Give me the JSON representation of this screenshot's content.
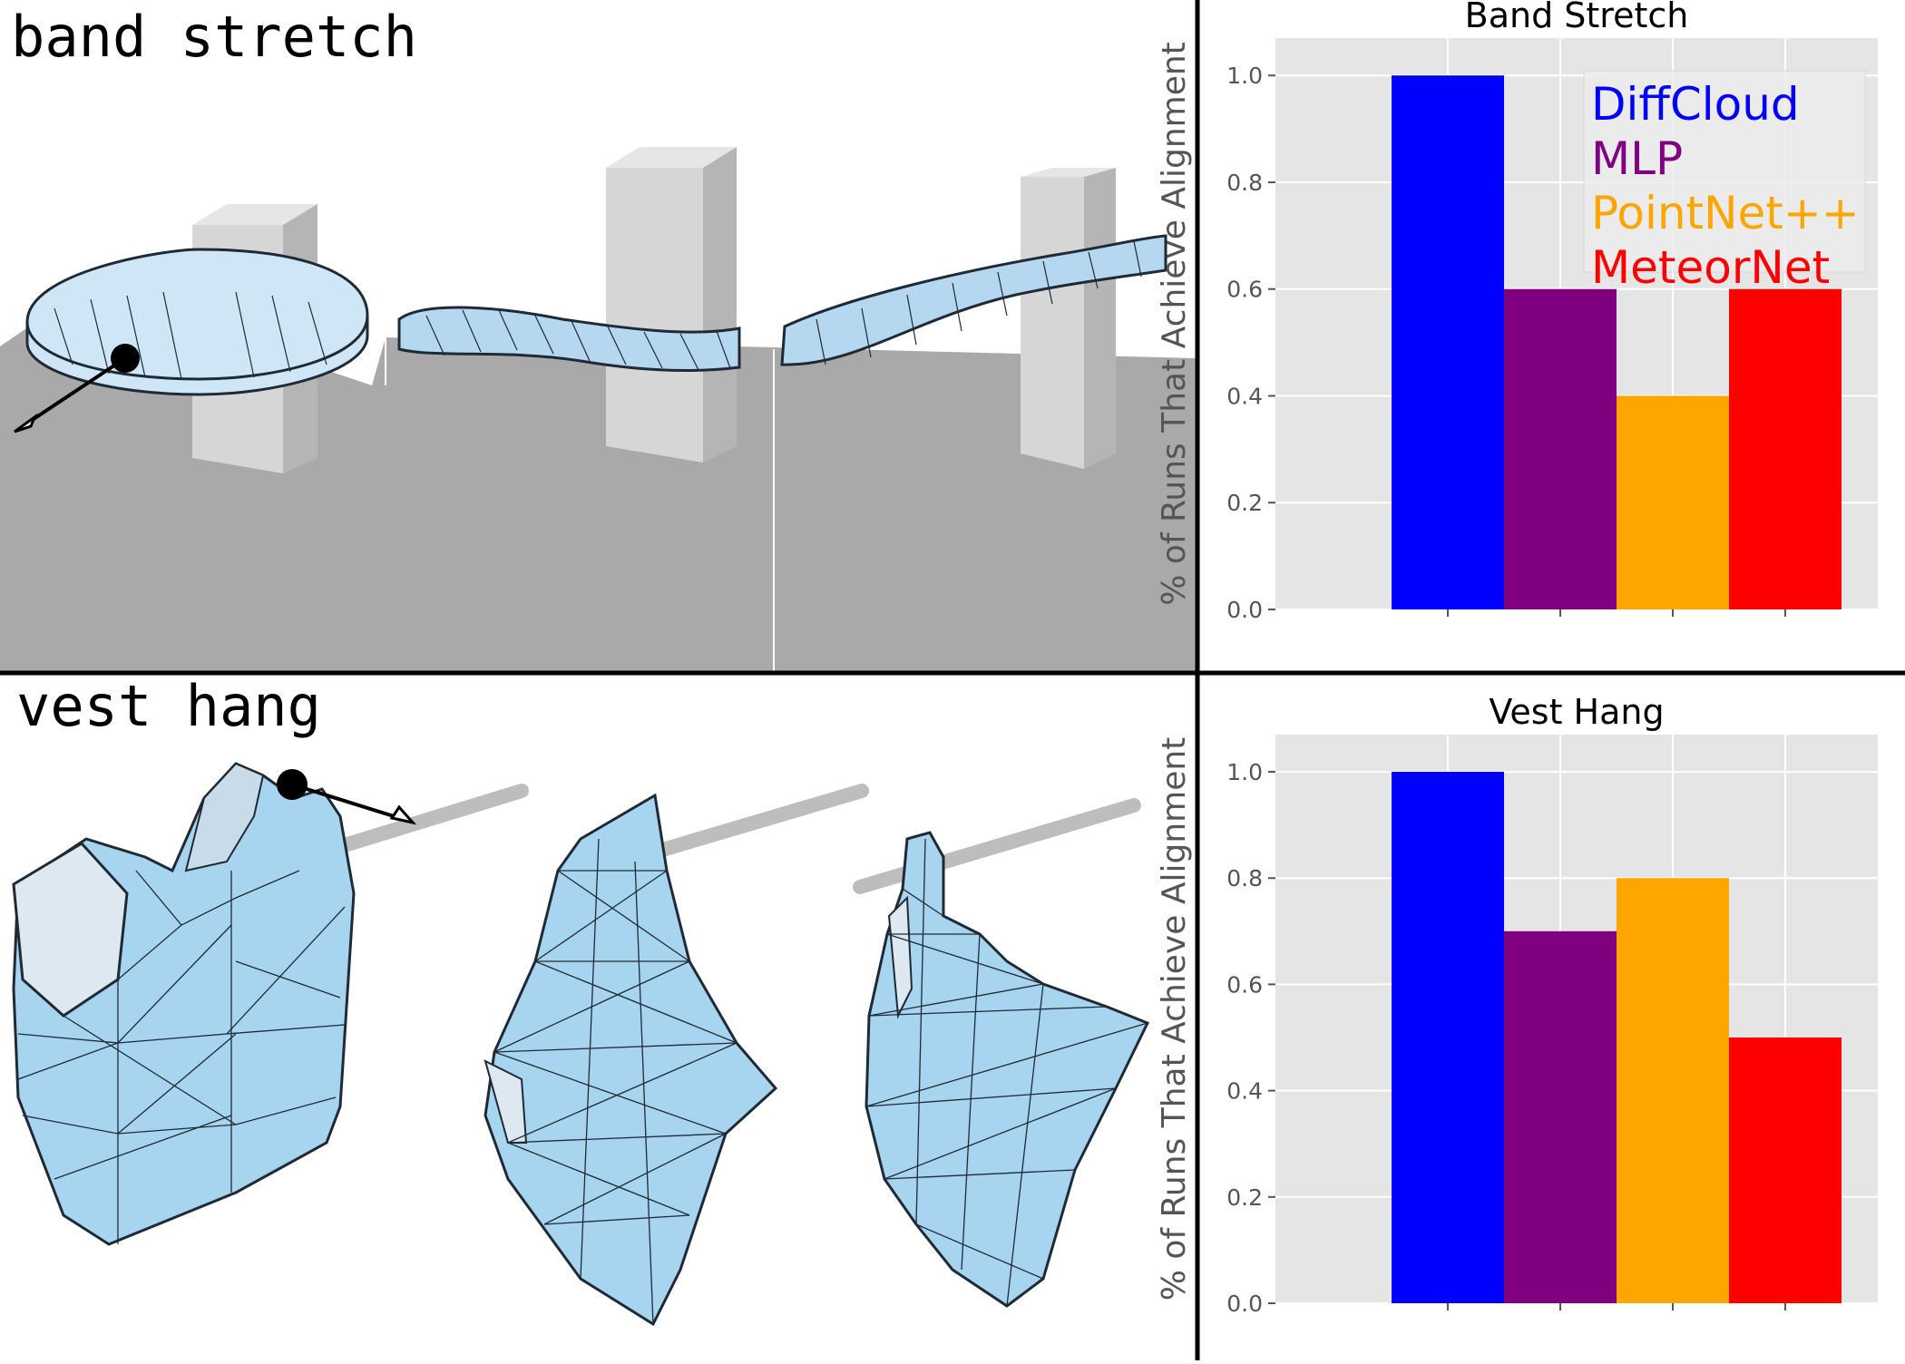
{
  "panels": {
    "top_label": "band stretch",
    "bottom_label": "vest hang"
  },
  "colors": {
    "diffcloud": "#0000ff",
    "mlp": "#800080",
    "pointnet": "#ffa500",
    "meteornet": "#ff0000",
    "plot_bg": "#e5e5e5",
    "mesh_fill": "#a7d4ee",
    "mesh_edge": "#1f2a36",
    "floor": "#a9a9a9",
    "box": "#d3d3d3"
  },
  "chart_data": [
    {
      "type": "bar",
      "title": "Band Stretch",
      "ylabel": "% of Runs That Achieve Alignment",
      "xlabel": "",
      "ylim": [
        0,
        1.07
      ],
      "yticks": [
        "0.0",
        "0.2",
        "0.4",
        "0.6",
        "0.8",
        "1.0"
      ],
      "grid": true,
      "legend_position": "top-right",
      "series": [
        {
          "name": "DiffCloud",
          "color": "#0000ff",
          "value": 1.0
        },
        {
          "name": "MLP",
          "color": "#800080",
          "value": 0.6
        },
        {
          "name": "PointNet++",
          "color": "#ffa500",
          "value": 0.4
        },
        {
          "name": "MeteorNet",
          "color": "#ff0000",
          "value": 0.6
        }
      ]
    },
    {
      "type": "bar",
      "title": "Vest Hang",
      "ylabel": "% of Runs That Achieve Alignment",
      "xlabel": "",
      "ylim": [
        0,
        1.07
      ],
      "yticks": [
        "0.0",
        "0.2",
        "0.4",
        "0.6",
        "0.8",
        "1.0"
      ],
      "grid": true,
      "legend_position": "none",
      "series": [
        {
          "name": "DiffCloud",
          "color": "#0000ff",
          "value": 1.0
        },
        {
          "name": "MLP",
          "color": "#800080",
          "value": 0.7
        },
        {
          "name": "PointNet++",
          "color": "#ffa500",
          "value": 0.8
        },
        {
          "name": "MeteorNet",
          "color": "#ff0000",
          "value": 0.5
        }
      ]
    }
  ]
}
